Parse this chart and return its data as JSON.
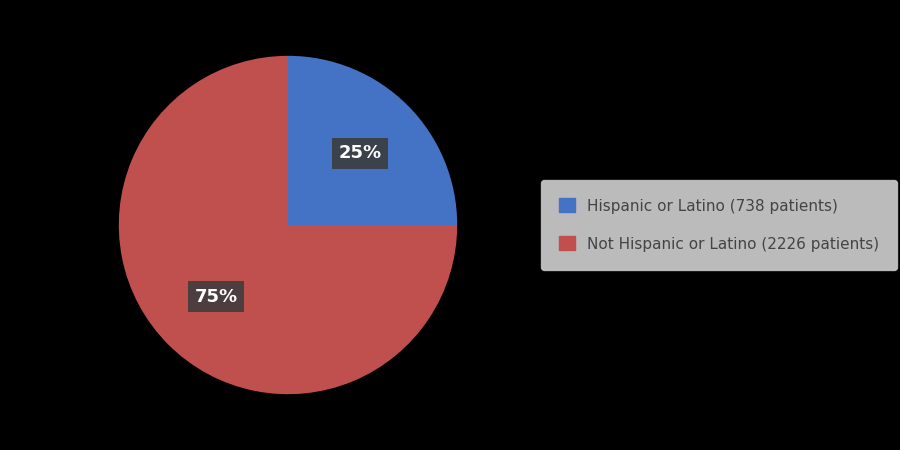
{
  "slices": [
    25,
    75
  ],
  "labels": [
    "Hispanic or Latino (738 patients)",
    "Not Hispanic or Latino (2226 patients)"
  ],
  "colors": [
    "#4472C4",
    "#C0504D"
  ],
  "background_color": "#000000",
  "legend_background": "#EBEBEB",
  "legend_edge_color": "#CCCCCC",
  "label_text_color": "#FFFFFF",
  "label_bg_color": "#3C3C3C",
  "startangle": 90,
  "legend_fontsize": 11,
  "autopct_fontsize": 13,
  "pct_distance_0": 0.6,
  "pct_distance_1": 0.6
}
